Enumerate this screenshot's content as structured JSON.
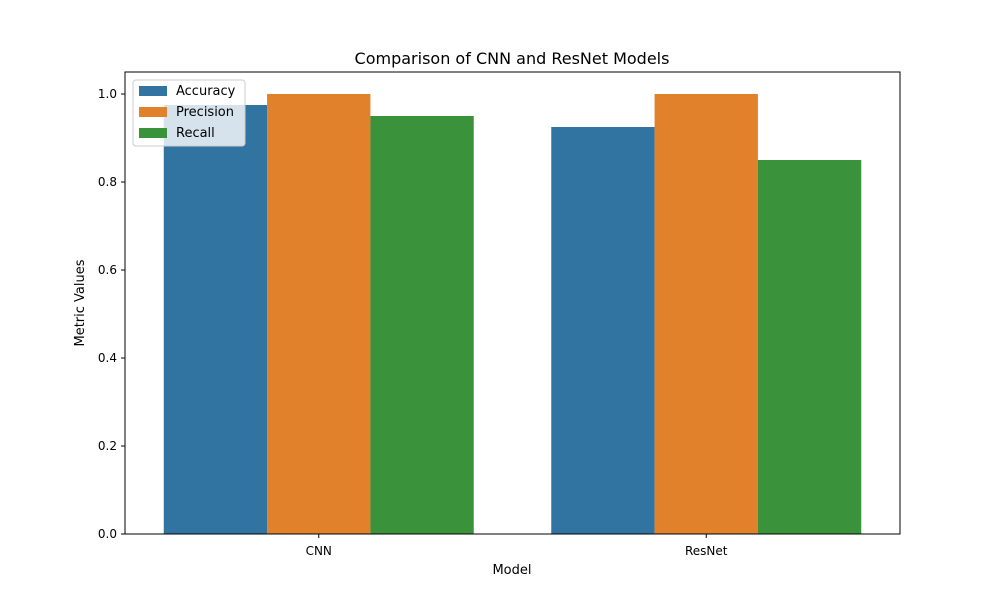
{
  "chart_data": {
    "type": "bar",
    "title": "Comparison of CNN and ResNet Models",
    "xlabel": "Model",
    "ylabel": "Metric Values",
    "categories": [
      "CNN",
      "ResNet"
    ],
    "series": [
      {
        "name": "Accuracy",
        "values": [
          0.975,
          0.925
        ],
        "color": "#3274a1"
      },
      {
        "name": "Precision",
        "values": [
          1.0,
          1.0
        ],
        "color": "#e1812c"
      },
      {
        "name": "Recall",
        "values": [
          0.95,
          0.85
        ],
        "color": "#3a923a"
      }
    ],
    "ylim": [
      0,
      1.05
    ],
    "yticks": [
      {
        "value": 0.0,
        "label": "0.0"
      },
      {
        "value": 0.2,
        "label": "0.2"
      },
      {
        "value": 0.4,
        "label": "0.4"
      },
      {
        "value": 0.6,
        "label": "0.6"
      },
      {
        "value": 0.8,
        "label": "0.8"
      },
      {
        "value": 1.0,
        "label": "1.0"
      }
    ],
    "grid": false,
    "legend_position": "top-left"
  }
}
